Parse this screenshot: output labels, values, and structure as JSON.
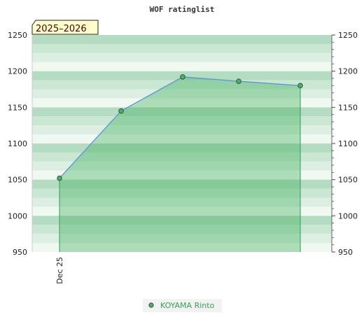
{
  "chart_data": {
    "type": "area",
    "title": "WOF ratinglist",
    "season_label": "2025–2026",
    "x_tick_labels": [
      "Dec 25"
    ],
    "ylim": [
      950,
      1250
    ],
    "y_ticks": [
      950,
      1000,
      1050,
      1100,
      1150,
      1200,
      1250
    ],
    "grid": true,
    "legend_position": "bottom-center",
    "colors": {
      "line": "#5b9bd5",
      "fill": "#3cae5a",
      "marker": "#4caf6a",
      "band_dark": "#b3dcc2",
      "band_mid": "#c9e7d3",
      "band_light": "#ddefe3",
      "band_lightest": "#f0f8f2"
    },
    "series": [
      {
        "name": "KOYAMA Rinto",
        "values": [
          1052,
          1145,
          1192,
          1186,
          1180
        ]
      }
    ]
  }
}
